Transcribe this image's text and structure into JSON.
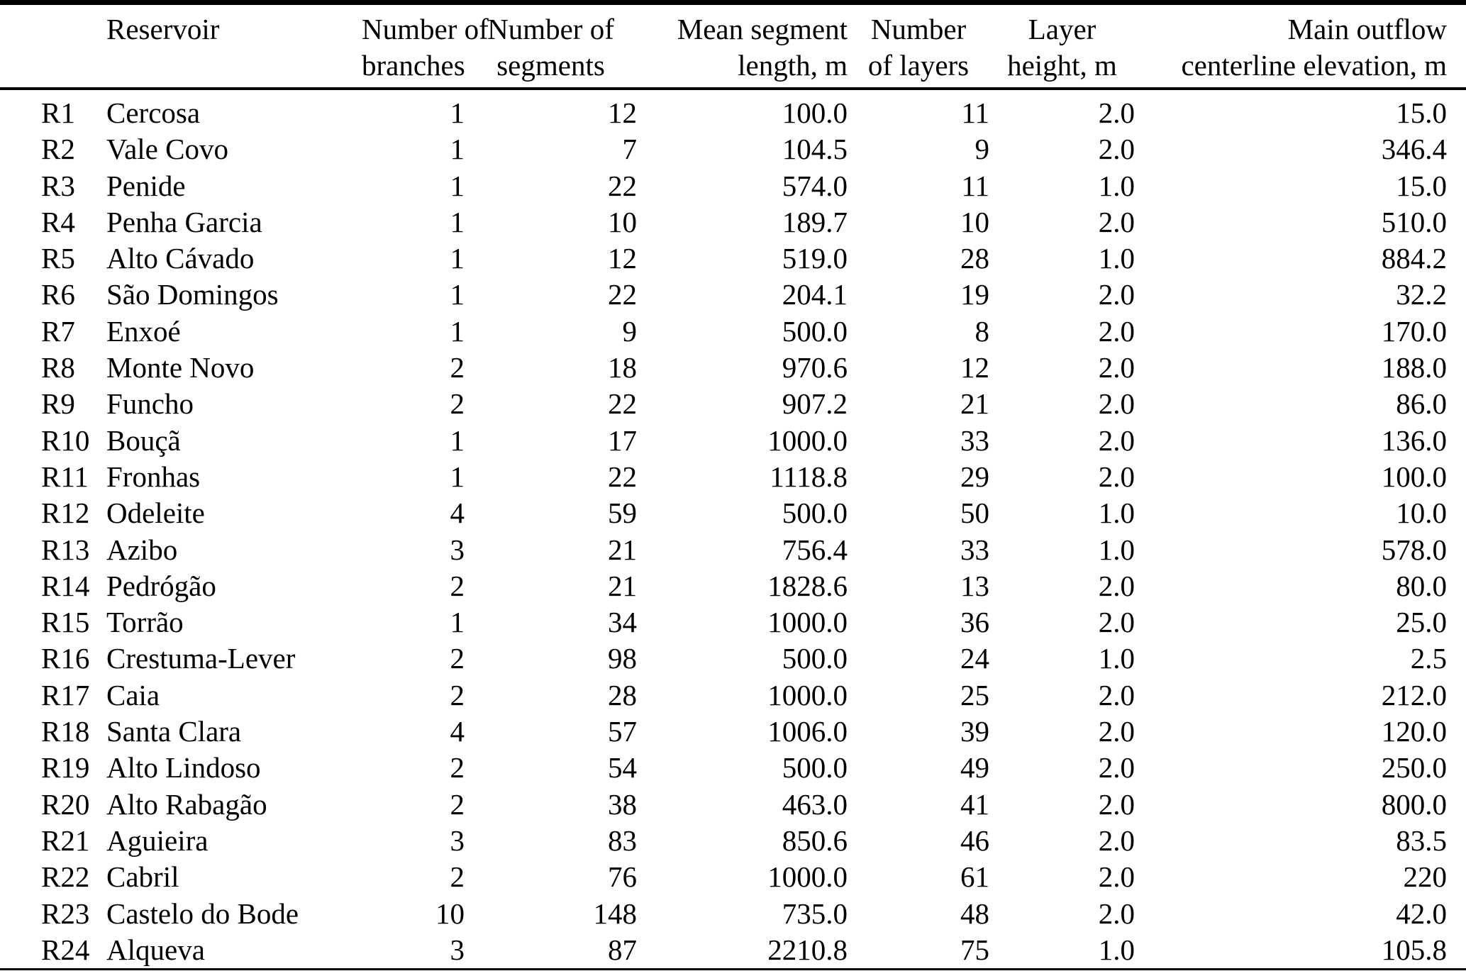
{
  "document": {
    "kind": "reservoir-discretization-table",
    "text_color": "#000000",
    "background_color": "#ffffff",
    "rule_color": "#000000"
  },
  "table": {
    "columns": [
      {
        "id": "reservoir_id",
        "line1": "",
        "line2": ""
      },
      {
        "id": "reservoir_name",
        "line1": "Reservoir",
        "line2": ""
      },
      {
        "id": "number_of_branches",
        "line1": "Number of",
        "line2": "branches"
      },
      {
        "id": "number_of_segments",
        "line1": "Number of",
        "line2": "segments"
      },
      {
        "id": "mean_segment_length_m",
        "line1": "Mean segment",
        "line2": "length, m"
      },
      {
        "id": "number_of_layers",
        "line1": "Number",
        "line2": "of layers"
      },
      {
        "id": "layer_height_m",
        "line1": "Layer",
        "line2": "height, m"
      },
      {
        "id": "main_outflow_centerline_elevation_m",
        "line1": "Main outflow",
        "line2": "centerline elevation, m"
      }
    ],
    "rows": [
      [
        "R1",
        "Cercosa",
        "1",
        "12",
        "100.0",
        "11",
        "2.0",
        "15.0"
      ],
      [
        "R2",
        "Vale Covo",
        "1",
        "7",
        "104.5",
        "9",
        "2.0",
        "346.4"
      ],
      [
        "R3",
        "Penide",
        "1",
        "22",
        "574.0",
        "11",
        "1.0",
        "15.0"
      ],
      [
        "R4",
        "Penha Garcia",
        "1",
        "10",
        "189.7",
        "10",
        "2.0",
        "510.0"
      ],
      [
        "R5",
        "Alto Cávado",
        "1",
        "12",
        "519.0",
        "28",
        "1.0",
        "884.2"
      ],
      [
        "R6",
        "São Domingos",
        "1",
        "22",
        "204.1",
        "19",
        "2.0",
        "32.2"
      ],
      [
        "R7",
        "Enxoé",
        "1",
        "9",
        "500.0",
        "8",
        "2.0",
        "170.0"
      ],
      [
        "R8",
        "Monte Novo",
        "2",
        "18",
        "970.6",
        "12",
        "2.0",
        "188.0"
      ],
      [
        "R9",
        "Funcho",
        "2",
        "22",
        "907.2",
        "21",
        "2.0",
        "86.0"
      ],
      [
        "R10",
        "Bouçã",
        "1",
        "17",
        "1000.0",
        "33",
        "2.0",
        "136.0"
      ],
      [
        "R11",
        "Fronhas",
        "1",
        "22",
        "1118.8",
        "29",
        "2.0",
        "100.0"
      ],
      [
        "R12",
        "Odeleite",
        "4",
        "59",
        "500.0",
        "50",
        "1.0",
        "10.0"
      ],
      [
        "R13",
        "Azibo",
        "3",
        "21",
        "756.4",
        "33",
        "1.0",
        "578.0"
      ],
      [
        "R14",
        "Pedrógão",
        "2",
        "21",
        "1828.6",
        "13",
        "2.0",
        "80.0"
      ],
      [
        "R15",
        "Torrão",
        "1",
        "34",
        "1000.0",
        "36",
        "2.0",
        "25.0"
      ],
      [
        "R16",
        "Crestuma-Lever",
        "2",
        "98",
        "500.0",
        "24",
        "1.0",
        "2.5"
      ],
      [
        "R17",
        "Caia",
        "2",
        "28",
        "1000.0",
        "25",
        "2.0",
        "212.0"
      ],
      [
        "R18",
        "Santa Clara",
        "4",
        "57",
        "1006.0",
        "39",
        "2.0",
        "120.0"
      ],
      [
        "R19",
        "Alto Lindoso",
        "2",
        "54",
        "500.0",
        "49",
        "2.0",
        "250.0"
      ],
      [
        "R20",
        "Alto Rabagão",
        "2",
        "38",
        "463.0",
        "41",
        "2.0",
        "800.0"
      ],
      [
        "R21",
        "Aguieira",
        "3",
        "83",
        "850.6",
        "46",
        "2.0",
        "83.5"
      ],
      [
        "R22",
        "Cabril",
        "2",
        "76",
        "1000.0",
        "61",
        "2.0",
        "220"
      ],
      [
        "R23",
        "Castelo do Bode",
        "10",
        "148",
        "735.0",
        "48",
        "2.0",
        "42.0"
      ],
      [
        "R24",
        "Alqueva",
        "3",
        "87",
        "2210.8",
        "75",
        "1.0",
        "105.8"
      ]
    ]
  }
}
